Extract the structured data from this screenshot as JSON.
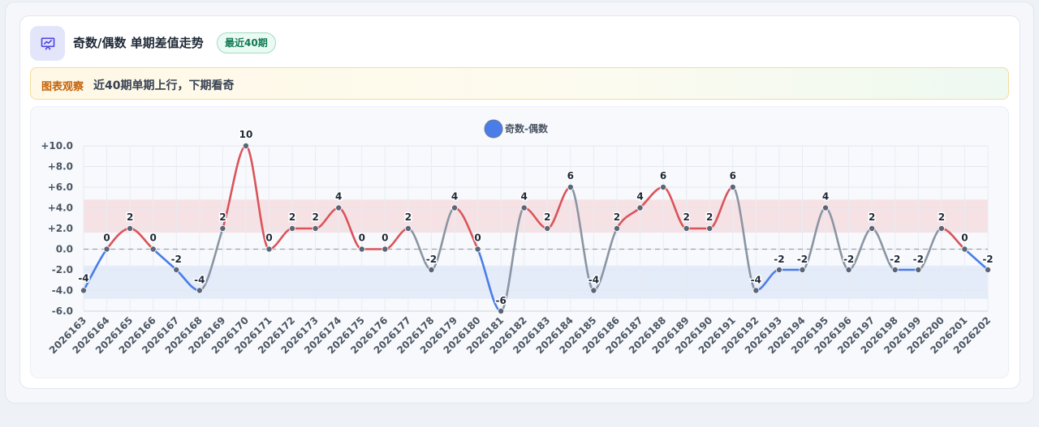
{
  "header": {
    "title": "奇数/偶数 单期差值走势",
    "badge": "最近40期",
    "icon": "presentation-chart-icon",
    "icon_color": "#4f46e5"
  },
  "observation": {
    "label": "图表观察",
    "text": "近40期单期上行，下期看奇"
  },
  "chart_data": {
    "type": "line",
    "title": "",
    "xlabel": "",
    "ylabel": "",
    "legend": {
      "position": "top-center",
      "label": "奇数-偶数",
      "color": "#4a7de8"
    },
    "categories": [
      "2026163",
      "2026164",
      "2026165",
      "2026166",
      "2026167",
      "2026168",
      "2026169",
      "2026170",
      "2026171",
      "2026172",
      "2026173",
      "2026174",
      "2026175",
      "2026176",
      "2026177",
      "2026178",
      "2026179",
      "2026180",
      "2026181",
      "2026182",
      "2026183",
      "2026184",
      "2026185",
      "2026186",
      "2026187",
      "2026188",
      "2026189",
      "2026190",
      "2026191",
      "2026192",
      "2026193",
      "2026194",
      "2026195",
      "2026196",
      "2026197",
      "2026198",
      "2026199",
      "2026200",
      "2026201",
      "2026202"
    ],
    "series": [
      {
        "name": "奇数-偶数",
        "values": [
          -4,
          0,
          2,
          0,
          -2,
          -4,
          2,
          10,
          0,
          2,
          2,
          4,
          0,
          0,
          2,
          -2,
          4,
          0,
          -6,
          4,
          2,
          6,
          -4,
          2,
          4,
          6,
          2,
          2,
          6,
          -4,
          -2,
          -2,
          4,
          -2,
          2,
          -2,
          -2,
          2,
          0,
          -2
        ]
      }
    ],
    "ylim": [
      -6,
      10
    ],
    "yticks": [
      "+10.0",
      "+8.0",
      "+6.0",
      "+4.0",
      "+2.0",
      "0.0",
      "-2.0",
      "-4.0",
      "-6.0"
    ],
    "ytick_values": [
      10,
      8,
      6,
      4,
      2,
      0,
      -2,
      -4,
      -6
    ],
    "bands": [
      {
        "from": 1.6,
        "to": 4.8,
        "color": "#f6d9dd"
      },
      {
        "from": -4.8,
        "to": -1.6,
        "color": "#dde6f8"
      }
    ],
    "zero_line": true,
    "grid": true,
    "colors": {
      "rise": "#d9545a",
      "fall": "#4a7de8",
      "flip": "#8a95a3",
      "point": "#5b6577"
    }
  }
}
